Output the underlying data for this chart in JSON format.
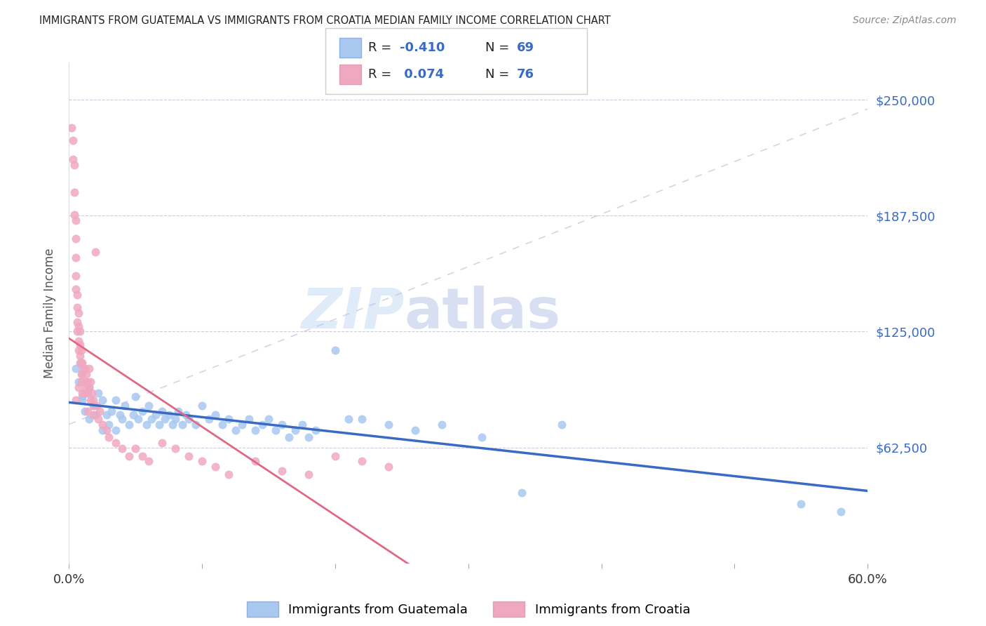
{
  "title": "IMMIGRANTS FROM GUATEMALA VS IMMIGRANTS FROM CROATIA MEDIAN FAMILY INCOME CORRELATION CHART",
  "source": "Source: ZipAtlas.com",
  "ylabel": "Median Family Income",
  "xlim": [
    0.0,
    0.6
  ],
  "ylim": [
    0,
    270000
  ],
  "yticks": [
    62500,
    125000,
    187500,
    250000
  ],
  "ytick_labels": [
    "$62,500",
    "$125,000",
    "$187,500",
    "$250,000"
  ],
  "xtick_positions": [
    0.0,
    0.1,
    0.2,
    0.3,
    0.4,
    0.5,
    0.6
  ],
  "xtick_labels": [
    "0.0%",
    "",
    "",
    "",
    "",
    "",
    "60.0%"
  ],
  "color_guatemala": "#a8c8f0",
  "color_croatia": "#f0a8c0",
  "color_trendline_guatemala": "#3a6bc4",
  "color_trendline_croatia": "#e06882",
  "color_dashed_bg": "#c8c0d8",
  "color_labels": "#3a6bc4",
  "color_legend_text": "#222222",
  "background_color": "#ffffff",
  "watermark_zip": "ZIP",
  "watermark_atlas": "atlas",
  "guatemala_x": [
    0.005,
    0.007,
    0.01,
    0.01,
    0.012,
    0.015,
    0.015,
    0.018,
    0.02,
    0.022,
    0.025,
    0.025,
    0.028,
    0.03,
    0.032,
    0.035,
    0.035,
    0.038,
    0.04,
    0.042,
    0.045,
    0.048,
    0.05,
    0.052,
    0.055,
    0.058,
    0.06,
    0.062,
    0.065,
    0.068,
    0.07,
    0.072,
    0.075,
    0.078,
    0.08,
    0.082,
    0.085,
    0.088,
    0.09,
    0.095,
    0.1,
    0.105,
    0.11,
    0.115,
    0.12,
    0.125,
    0.13,
    0.135,
    0.14,
    0.145,
    0.15,
    0.155,
    0.16,
    0.165,
    0.17,
    0.175,
    0.18,
    0.185,
    0.2,
    0.21,
    0.22,
    0.24,
    0.26,
    0.28,
    0.31,
    0.34,
    0.37,
    0.55,
    0.58
  ],
  "guatemala_y": [
    105000,
    98000,
    90000,
    88000,
    82000,
    95000,
    78000,
    85000,
    80000,
    92000,
    88000,
    72000,
    80000,
    75000,
    82000,
    88000,
    72000,
    80000,
    78000,
    85000,
    75000,
    80000,
    90000,
    78000,
    82000,
    75000,
    85000,
    78000,
    80000,
    75000,
    82000,
    78000,
    80000,
    75000,
    78000,
    82000,
    75000,
    80000,
    78000,
    75000,
    85000,
    78000,
    80000,
    75000,
    78000,
    72000,
    75000,
    78000,
    72000,
    75000,
    78000,
    72000,
    75000,
    68000,
    72000,
    75000,
    68000,
    72000,
    115000,
    78000,
    78000,
    75000,
    72000,
    75000,
    68000,
    38000,
    75000,
    32000,
    28000
  ],
  "croatia_x": [
    0.002,
    0.003,
    0.003,
    0.004,
    0.004,
    0.004,
    0.005,
    0.005,
    0.005,
    0.005,
    0.005,
    0.006,
    0.006,
    0.006,
    0.006,
    0.007,
    0.007,
    0.007,
    0.007,
    0.008,
    0.008,
    0.008,
    0.008,
    0.009,
    0.009,
    0.009,
    0.009,
    0.01,
    0.01,
    0.01,
    0.01,
    0.011,
    0.011,
    0.012,
    0.012,
    0.012,
    0.013,
    0.013,
    0.014,
    0.014,
    0.015,
    0.015,
    0.016,
    0.016,
    0.017,
    0.018,
    0.018,
    0.019,
    0.02,
    0.021,
    0.022,
    0.023,
    0.025,
    0.028,
    0.03,
    0.035,
    0.04,
    0.045,
    0.05,
    0.055,
    0.06,
    0.07,
    0.08,
    0.09,
    0.1,
    0.11,
    0.12,
    0.14,
    0.16,
    0.18,
    0.2,
    0.22,
    0.24,
    0.005,
    0.007,
    0.014
  ],
  "croatia_y": [
    235000,
    228000,
    218000,
    215000,
    200000,
    188000,
    185000,
    175000,
    165000,
    155000,
    148000,
    145000,
    138000,
    130000,
    125000,
    135000,
    128000,
    120000,
    115000,
    125000,
    118000,
    112000,
    108000,
    115000,
    108000,
    102000,
    98000,
    108000,
    102000,
    98000,
    92000,
    105000,
    98000,
    105000,
    98000,
    92000,
    102000,
    95000,
    98000,
    92000,
    105000,
    95000,
    98000,
    88000,
    92000,
    88000,
    80000,
    85000,
    168000,
    85000,
    78000,
    82000,
    75000,
    72000,
    68000,
    65000,
    62000,
    58000,
    62000,
    58000,
    55000,
    65000,
    62000,
    58000,
    55000,
    52000,
    48000,
    55000,
    50000,
    48000,
    58000,
    55000,
    52000,
    88000,
    95000,
    82000
  ]
}
